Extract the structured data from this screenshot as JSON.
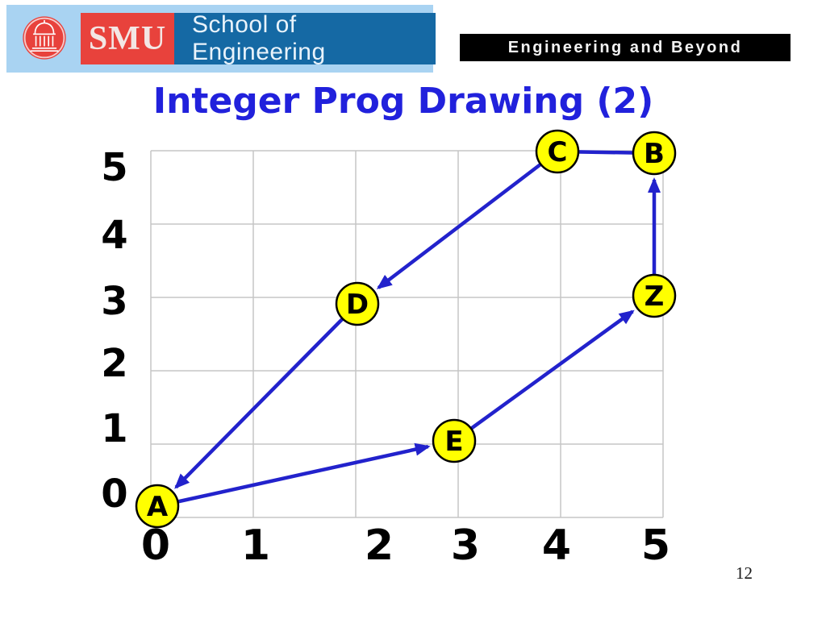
{
  "header": {
    "seal_icon": "smu-seal-icon",
    "smu": "SMU",
    "school": "School of Engineering",
    "motto": "Engineering and Beyond"
  },
  "slide": {
    "title": "Integer Prog Drawing (2)",
    "page_number": "12"
  },
  "colors": {
    "banner_bg": "#a9d3f2",
    "smu_red": "#e8423c",
    "school_blue": "#1569a4",
    "motto_bg": "#000000",
    "title_blue": "#2121dc",
    "edge_blue": "#2222cc",
    "node_yellow": "#ffff00",
    "grid_gray": "#c5c5c5"
  },
  "chart_data": {
    "type": "scatter",
    "title": "Integer Prog Drawing (2)",
    "xlabel": "",
    "ylabel": "",
    "xlim": [
      0,
      5
    ],
    "ylim": [
      0,
      5
    ],
    "grid": true,
    "x_ticks": [
      "0",
      "1",
      "2",
      "3",
      "4",
      "5"
    ],
    "y_ticks_top_to_bottom": [
      "5",
      "4",
      "3",
      "2",
      "1",
      "0"
    ],
    "nodes": [
      {
        "id": "A",
        "x": 0,
        "y": 0
      },
      {
        "id": "E",
        "x": 3,
        "y": 1
      },
      {
        "id": "Z",
        "x": 5,
        "y": 3
      },
      {
        "id": "B",
        "x": 5,
        "y": 5
      },
      {
        "id": "C",
        "x": 4,
        "y": 5
      },
      {
        "id": "D",
        "x": 2,
        "y": 3
      }
    ],
    "edges": [
      {
        "from": "A",
        "to": "E",
        "arrow": true
      },
      {
        "from": "E",
        "to": "Z",
        "arrow": true
      },
      {
        "from": "Z",
        "to": "B",
        "arrow": true
      },
      {
        "from": "C",
        "to": "B",
        "arrow": false
      },
      {
        "from": "C",
        "to": "D",
        "arrow": true
      },
      {
        "from": "D",
        "to": "A",
        "arrow": true
      }
    ]
  }
}
